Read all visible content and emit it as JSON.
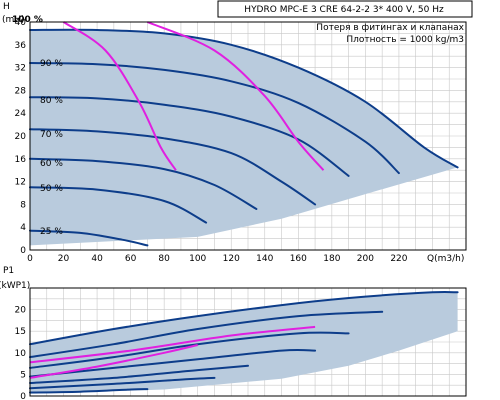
{
  "chart_data": [
    {
      "type": "line",
      "title": "HYDRO MPC-E 3 CRE 64-2-2   3* 400 V, 50 Hz",
      "annotations": [
        "Потеря в фитингах и клапанах",
        "Плотность = 1000 kg/m3"
      ],
      "xlabel": "Q(m3/h)",
      "ylabel": "H",
      "yunit": "(mH)",
      "xlim": [
        0,
        260
      ],
      "ylim": [
        0,
        40
      ],
      "xticks": [
        0,
        20,
        40,
        60,
        80,
        100,
        120,
        140,
        160,
        180,
        200,
        220
      ],
      "xtick_labels": [
        "0",
        "20",
        "40",
        "60",
        "80",
        "100",
        "120",
        "140",
        "160",
        "180",
        "200",
        "220"
      ],
      "yticks": [
        0,
        4,
        8,
        12,
        16,
        20,
        24,
        28,
        32,
        36,
        40
      ],
      "ytick_labels": [
        "0",
        "4",
        "8",
        "12",
        "16",
        "20",
        "24",
        "28",
        "32",
        "36",
        "40"
      ],
      "grid": true,
      "envelope": {
        "upper": [
          [
            0,
            38.6
          ],
          [
            40,
            38.6
          ],
          [
            80,
            38.0
          ],
          [
            120,
            36.0
          ],
          [
            160,
            32.0
          ],
          [
            200,
            26.0
          ],
          [
            235,
            18.0
          ],
          [
            255,
            14.5
          ]
        ],
        "lower": [
          [
            0,
            0.8
          ],
          [
            100,
            2.3
          ],
          [
            150,
            5.5
          ],
          [
            200,
            9.8
          ],
          [
            255,
            14.5
          ]
        ]
      },
      "speed_labels": [
        "100 %",
        "90 %",
        "80 %",
        "70 %",
        "60 %",
        "50 %",
        "25 %"
      ],
      "series": [
        {
          "label": "100 %",
          "points": [
            [
              0,
              38.6
            ],
            [
              40,
              38.6
            ],
            [
              80,
              38.0
            ],
            [
              120,
              36.0
            ],
            [
              160,
              32.0
            ],
            [
              200,
              26.0
            ],
            [
              235,
              18.0
            ],
            [
              255,
              14.5
            ]
          ]
        },
        {
          "label": "90 %",
          "points": [
            [
              0,
              32.8
            ],
            [
              40,
              32.6
            ],
            [
              80,
              31.6
            ],
            [
              120,
              29.6
            ],
            [
              160,
              25.8
            ],
            [
              200,
              19.0
            ],
            [
              220,
              13.5
            ]
          ]
        },
        {
          "label": "80 %",
          "points": [
            [
              0,
              26.8
            ],
            [
              40,
              26.6
            ],
            [
              80,
              25.5
            ],
            [
              120,
              23.4
            ],
            [
              160,
              19.4
            ],
            [
              190,
              13.0
            ]
          ]
        },
        {
          "label": "70 %",
          "points": [
            [
              0,
              21.2
            ],
            [
              40,
              20.8
            ],
            [
              80,
              19.6
            ],
            [
              120,
              17.0
            ],
            [
              150,
              12.0
            ],
            [
              170,
              8.0
            ]
          ]
        },
        {
          "label": "60 %",
          "points": [
            [
              0,
              16.0
            ],
            [
              40,
              15.6
            ],
            [
              80,
              14.2
            ],
            [
              110,
              11.4
            ],
            [
              135,
              7.2
            ]
          ]
        },
        {
          "label": "50 %",
          "points": [
            [
              0,
              11.0
            ],
            [
              40,
              10.6
            ],
            [
              80,
              8.6
            ],
            [
              105,
              4.8
            ]
          ]
        },
        {
          "label": "25 %",
          "points": [
            [
              0,
              3.4
            ],
            [
              30,
              3.0
            ],
            [
              55,
              1.8
            ],
            [
              70,
              0.8
            ]
          ]
        }
      ],
      "pink_series": [
        {
          "points": [
            [
              20,
              40.0
            ],
            [
              45,
              35.0
            ],
            [
              65,
              26.0
            ],
            [
              78,
              18.0
            ],
            [
              87,
              14.0
            ]
          ]
        },
        {
          "points": [
            [
              70,
              40.0
            ],
            [
              110,
              35.0
            ],
            [
              140,
              27.0
            ],
            [
              160,
              19.0
            ],
            [
              175,
              14.0
            ]
          ]
        }
      ]
    },
    {
      "type": "line",
      "ylabel": "P1",
      "yunit": "(kWP1)",
      "xlim": [
        0,
        260
      ],
      "ylim": [
        0,
        25
      ],
      "yticks": [
        0,
        5,
        10,
        15,
        20
      ],
      "ytick_labels": [
        "0",
        "5",
        "10",
        "15",
        "20"
      ],
      "grid": true,
      "envelope": {
        "upper": [
          [
            0,
            12.0
          ],
          [
            50,
            15.5
          ],
          [
            100,
            18.5
          ],
          [
            160,
            21.5
          ],
          [
            200,
            23.0
          ],
          [
            240,
            24.0
          ],
          [
            255,
            24.0
          ]
        ],
        "lower": [
          [
            0,
            0.5
          ],
          [
            80,
            1.5
          ],
          [
            150,
            4.0
          ],
          [
            190,
            7.0
          ],
          [
            220,
            10.5
          ],
          [
            255,
            15.0
          ]
        ]
      },
      "series": [
        {
          "points": [
            [
              0,
              12.0
            ],
            [
              50,
              15.5
            ],
            [
              100,
              18.5
            ],
            [
              160,
              21.5
            ],
            [
              200,
              23.0
            ],
            [
              240,
              24.0
            ],
            [
              255,
              24.0
            ]
          ]
        },
        {
          "points": [
            [
              0,
              9.0
            ],
            [
              50,
              12.0
            ],
            [
              100,
              15.5
            ],
            [
              160,
              18.5
            ],
            [
              210,
              19.5
            ]
          ]
        },
        {
          "points": [
            [
              0,
              6.5
            ],
            [
              50,
              9.0
            ],
            [
              100,
              12.0
            ],
            [
              160,
              14.5
            ],
            [
              190,
              14.5
            ]
          ]
        },
        {
          "points": [
            [
              0,
              4.5
            ],
            [
              50,
              6.5
            ],
            [
              100,
              8.5
            ],
            [
              150,
              10.5
            ],
            [
              170,
              10.5
            ]
          ]
        },
        {
          "points": [
            [
              0,
              3.0
            ],
            [
              50,
              4.2
            ],
            [
              100,
              6.0
            ],
            [
              130,
              7.0
            ]
          ]
        },
        {
          "points": [
            [
              0,
              1.8
            ],
            [
              50,
              2.8
            ],
            [
              90,
              3.8
            ],
            [
              110,
              4.2
            ]
          ]
        },
        {
          "points": [
            [
              0,
              0.8
            ],
            [
              30,
              1.0
            ],
            [
              60,
              1.5
            ],
            [
              70,
              1.6
            ]
          ]
        }
      ],
      "pink_series": [
        {
          "points": [
            [
              0,
              4.2
            ],
            [
              40,
              6.8
            ],
            [
              80,
              10.0
            ],
            [
              100,
              11.8
            ]
          ]
        },
        {
          "points": [
            [
              0,
              7.8
            ],
            [
              60,
              10.5
            ],
            [
              120,
              14.0
            ],
            [
              170,
              16.0
            ]
          ]
        }
      ]
    }
  ]
}
